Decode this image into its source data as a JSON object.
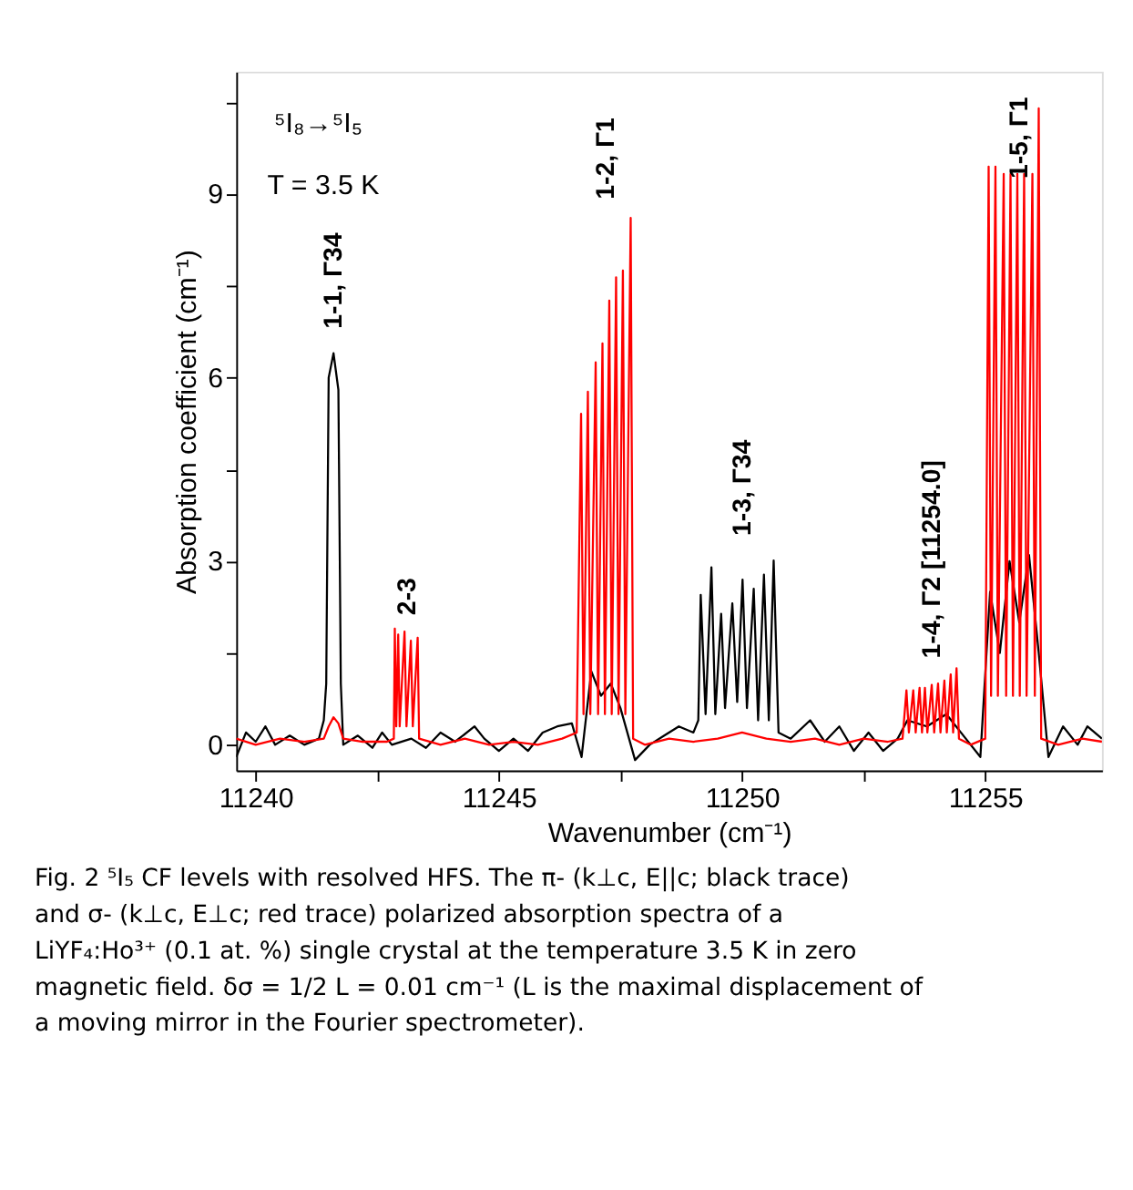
{
  "chart_data": {
    "type": "line",
    "xlabel": "Wavenumber (cm⁻¹)",
    "ylabel": "Absorption coefficient (cm⁻¹)",
    "xlim": [
      11239.6,
      11257.4
    ],
    "ylim": [
      -0.42,
      11
    ],
    "xticks": [
      11240,
      {
        "value": 11242.5,
        "label": null
      },
      11245,
      {
        "value": 11247.5,
        "label": null
      },
      11250,
      {
        "value": 11252.5,
        "label": null
      },
      11255
    ],
    "yticks": [
      0,
      {
        "value": 1.5,
        "label": null
      },
      3,
      {
        "value": 4.5,
        "label": null
      },
      6,
      {
        "value": 7.5,
        "label": null
      },
      9,
      {
        "value": 10.5,
        "label": null
      }
    ],
    "grid": false,
    "legend": false,
    "marker": "none",
    "line_style": "solid",
    "series": [
      {
        "color": "#000000",
        "x": [
          11239.6,
          11239.8,
          11240.0,
          11240.2,
          11240.4,
          11240.7,
          11241.0,
          11241.3,
          11241.4,
          11241.45,
          11241.5,
          11241.6,
          11241.7,
          11241.75,
          11241.8,
          11242.1,
          11242.4,
          11242.6,
          11242.8,
          11243.2,
          11243.5,
          11243.8,
          11244.1,
          11244.5,
          11244.7,
          11245.0,
          11245.3,
          11245.6,
          11245.9,
          11246.2,
          11246.5,
          11246.7,
          11246.9,
          11247.1,
          11247.3,
          11247.5,
          11247.8,
          11248.1,
          11248.4,
          11248.7,
          11249.0,
          11249.1,
          11249.15,
          11249.25,
          11249.37,
          11249.45,
          11249.57,
          11249.65,
          11249.8,
          11249.9,
          11250.01,
          11250.1,
          11250.24,
          11250.33,
          11250.45,
          11250.55,
          11250.65,
          11250.75,
          11251.0,
          11251.4,
          11251.7,
          11252.0,
          11252.3,
          11252.6,
          11252.9,
          11253.2,
          11253.4,
          11253.8,
          11254.2,
          11254.6,
          11254.9,
          11255.1,
          11255.3,
          11255.5,
          11255.7,
          11255.9,
          11256.1,
          11256.3,
          11256.6,
          11256.9,
          11257.1,
          11257.4
        ],
        "values": [
          -0.2,
          0.2,
          0.05,
          0.3,
          0.0,
          0.15,
          0.0,
          0.1,
          0.4,
          1.0,
          6.0,
          6.4,
          5.8,
          1.0,
          0.0,
          0.15,
          -0.05,
          0.2,
          0.0,
          0.1,
          -0.05,
          0.2,
          0.05,
          0.3,
          0.1,
          -0.1,
          0.1,
          -0.1,
          0.2,
          0.3,
          0.35,
          -0.2,
          1.2,
          0.8,
          1.0,
          0.6,
          -0.25,
          0.0,
          0.15,
          0.3,
          0.2,
          0.4,
          2.45,
          0.5,
          2.9,
          0.5,
          2.14,
          0.6,
          2.31,
          0.7,
          2.7,
          0.6,
          2.55,
          0.4,
          2.78,
          0.4,
          3.01,
          0.2,
          0.1,
          0.4,
          0.05,
          0.3,
          -0.1,
          0.2,
          -0.1,
          0.1,
          0.4,
          0.3,
          0.5,
          0.1,
          -0.2,
          2.5,
          1.5,
          3.0,
          2.0,
          3.1,
          1.5,
          -0.2,
          0.3,
          0.0,
          0.3,
          0.1
        ]
      },
      {
        "color": "#ff0000",
        "x": [
          11239.6,
          11240.0,
          11240.5,
          11241.0,
          11241.4,
          11241.5,
          11241.6,
          11241.7,
          11241.8,
          11242.2,
          11242.7,
          11242.84,
          11242.86,
          11242.89,
          11242.93,
          11242.96,
          11243.06,
          11243.1,
          11243.19,
          11243.23,
          11243.33,
          11243.36,
          11243.8,
          11244.3,
          11244.8,
          11245.3,
          11245.8,
          11246.3,
          11246.6,
          11246.69,
          11246.74,
          11246.83,
          11246.88,
          11246.99,
          11247.04,
          11247.13,
          11247.18,
          11247.27,
          11247.32,
          11247.41,
          11247.46,
          11247.55,
          11247.6,
          11247.71,
          11247.76,
          11248.0,
          11248.5,
          11249.0,
          11249.5,
          11250.0,
          11250.5,
          11251.0,
          11251.5,
          11252.0,
          11252.5,
          11253.0,
          11253.3,
          11253.38,
          11253.43,
          11253.52,
          11253.57,
          11253.65,
          11253.7,
          11253.76,
          11253.81,
          11253.9,
          11253.95,
          11254.03,
          11254.08,
          11254.16,
          11254.21,
          11254.29,
          11254.34,
          11254.41,
          11254.46,
          11254.7,
          11255.0,
          11255.07,
          11255.12,
          11255.21,
          11255.26,
          11255.38,
          11255.43,
          11255.52,
          11255.57,
          11255.66,
          11255.71,
          11255.8,
          11255.85,
          11255.97,
          11256.02,
          11256.1,
          11256.15,
          11256.5,
          11257.0,
          11257.4
        ],
        "values": [
          0.1,
          0.0,
          0.1,
          0.05,
          0.1,
          0.3,
          0.45,
          0.35,
          0.1,
          0.05,
          0.05,
          0.1,
          1.9,
          0.3,
          1.8,
          0.3,
          1.85,
          0.3,
          1.7,
          0.3,
          1.75,
          0.1,
          0.0,
          0.1,
          0.0,
          0.05,
          0.0,
          0.1,
          0.2,
          5.41,
          0.5,
          5.77,
          0.5,
          6.25,
          0.5,
          6.56,
          0.5,
          7.26,
          0.5,
          7.64,
          0.5,
          7.75,
          0.5,
          8.61,
          0.1,
          0.0,
          0.1,
          0.05,
          0.1,
          0.2,
          0.1,
          0.05,
          0.1,
          0.0,
          0.1,
          0.05,
          0.1,
          0.89,
          0.2,
          0.89,
          0.2,
          0.93,
          0.2,
          0.93,
          0.2,
          0.98,
          0.2,
          1.0,
          0.2,
          1.05,
          0.2,
          1.15,
          0.2,
          1.25,
          0.1,
          0.0,
          0.1,
          9.45,
          0.8,
          9.45,
          0.8,
          9.33,
          0.8,
          9.33,
          0.8,
          9.33,
          0.8,
          9.33,
          0.8,
          9.33,
          0.8,
          10.4,
          0.1,
          0.0,
          0.1,
          0.05
        ]
      }
    ],
    "annotations": [
      "⁵I₈→⁵I₅",
      "T = 3.5 K",
      "1-1, Γ34",
      "2-3",
      "1-2, Γ1",
      "1-3, Γ34",
      "1-4, Γ2 [11254.0]",
      "1-5, Γ1",
      "Fig. 2 ⁵I₅ CF levels with resolved HFS. The π- (k⊥c, E||c; black trace) and σ- (k⊥c, E⊥c; red trace) polarized absorption spectra of a LiYF₄:Ho³⁺ (0.1 at. %) single crystal at the temperature 3.5 K in zero magnetic field. δσ = 1/2 L = 0.01 cm⁻¹ (L is the maximal displacement of a moving mirror in the Fourier spectrometer)."
    ]
  }
}
